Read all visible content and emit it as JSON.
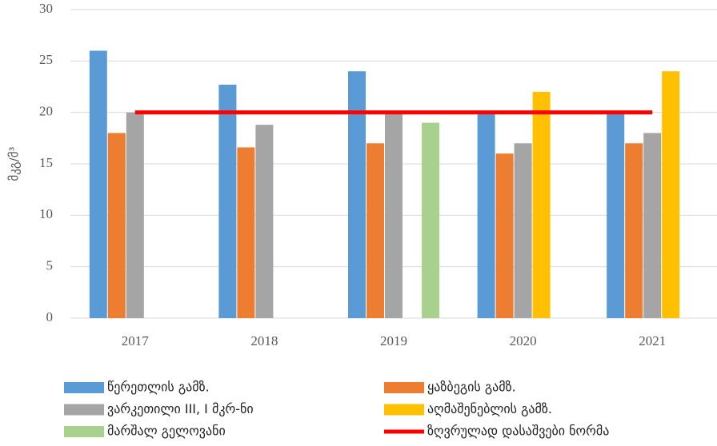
{
  "chart_data": {
    "type": "bar",
    "y_label": "მკგ/მ³",
    "categories": [
      "2017",
      "2018",
      "2019",
      "2020",
      "2021"
    ],
    "series": [
      {
        "name": "წერეთლის გამზ.",
        "color": "#5b9bd5",
        "values": [
          26,
          22.7,
          24,
          20,
          20
        ]
      },
      {
        "name": "ყაზბეგის გამზ.",
        "color": "#ed7d31",
        "values": [
          18,
          16.6,
          17,
          16,
          17
        ]
      },
      {
        "name": "ვარკეთილი III, I მკრ-ნი",
        "color": "#a5a5a5",
        "values": [
          20,
          18.8,
          20,
          17,
          18
        ]
      },
      {
        "name": "აღმაშენებლის გამზ.",
        "color": "#ffc000",
        "values": [
          null,
          null,
          null,
          22,
          24
        ]
      },
      {
        "name": "მარშალ გელოვანი",
        "color": "#a9d18e",
        "values": [
          null,
          null,
          19,
          null,
          null
        ]
      },
      {
        "name": "ზღვრულად დასაშვები ნორმა",
        "color": "#ff0000",
        "type": "line",
        "values": [
          20,
          20,
          20,
          20,
          20
        ]
      }
    ],
    "ylim": [
      0,
      30
    ],
    "yticks": [
      0,
      5,
      10,
      15,
      20,
      25,
      30
    ],
    "grid": true
  }
}
